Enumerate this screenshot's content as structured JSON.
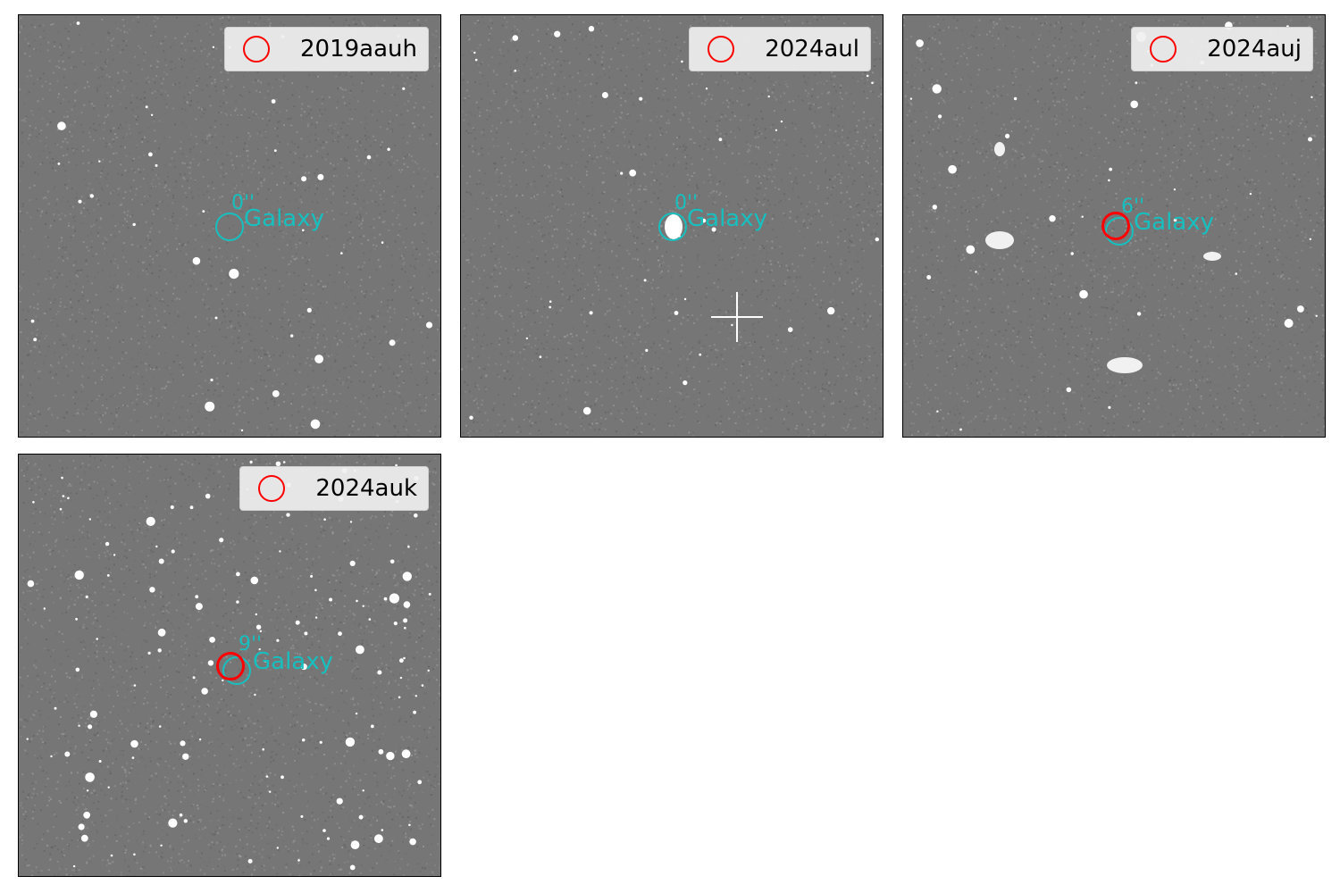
{
  "colors": {
    "transient_marker": "#ff0000",
    "host_marker": "#17bfbf",
    "sky_background": "#767676"
  },
  "panels": [
    {
      "name": "2019aauh",
      "host_label": "Galaxy",
      "separation": "0''",
      "show_transient": false
    },
    {
      "name": "2024aul",
      "host_label": "Galaxy",
      "separation": "0''",
      "show_transient": false
    },
    {
      "name": "2024auj",
      "host_label": "Galaxy",
      "separation": "6''",
      "show_transient": true
    },
    {
      "name": "2024auk",
      "host_label": "Galaxy",
      "separation": "9''",
      "show_transient": true
    }
  ]
}
